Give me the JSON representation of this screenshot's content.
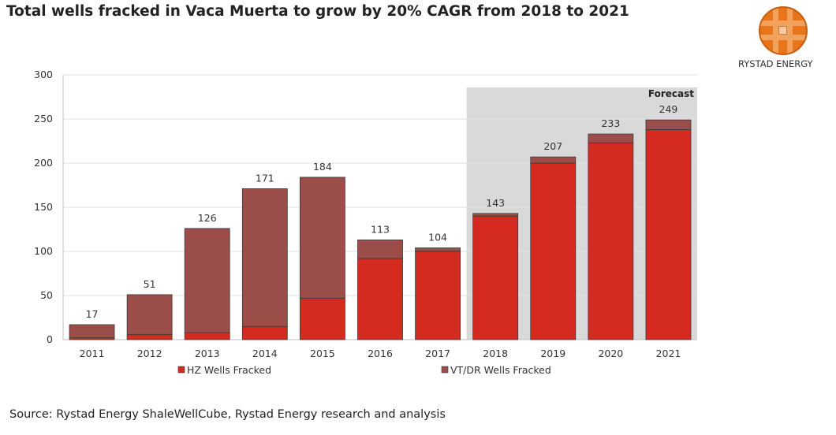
{
  "header": {
    "title": "Total wells fracked in Vaca Muerta to grow by 20% CAGR from 2018 to 2021"
  },
  "logo": {
    "name": "RYSTAD ENERGY",
    "icon": "globe-logo-icon",
    "colors": {
      "orange": "#E8751A",
      "light": "#F2A25C"
    }
  },
  "footer": {
    "source": "Source: Rystad Energy ShaleWellCube, Rystad Energy research and analysis"
  },
  "chart_data": {
    "type": "bar",
    "stacked": true,
    "categories": [
      "2011",
      "2012",
      "2013",
      "2014",
      "2015",
      "2016",
      "2017",
      "2018",
      "2019",
      "2020",
      "2021"
    ],
    "series": [
      {
        "name": "HZ Wells Fracked",
        "color": "#D42A20",
        "values": [
          2,
          6,
          8,
          15,
          47,
          92,
          100,
          140,
          200,
          223,
          238
        ]
      },
      {
        "name": "VT/DR Wells Fracked",
        "color": "#9B4D4A",
        "values": [
          15,
          45,
          118,
          156,
          137,
          21,
          4,
          3,
          7,
          10,
          11
        ]
      }
    ],
    "totals": [
      17,
      51,
      126,
      171,
      184,
      113,
      104,
      143,
      207,
      233,
      249
    ],
    "ylim": [
      0,
      300
    ],
    "yticks": [
      0,
      50,
      100,
      150,
      200,
      250,
      300
    ],
    "grid": true,
    "legend_position": "bottom",
    "forecast": {
      "label": "Forecast",
      "from": "2018",
      "to": "2021",
      "color": "#D9D9D9"
    }
  }
}
